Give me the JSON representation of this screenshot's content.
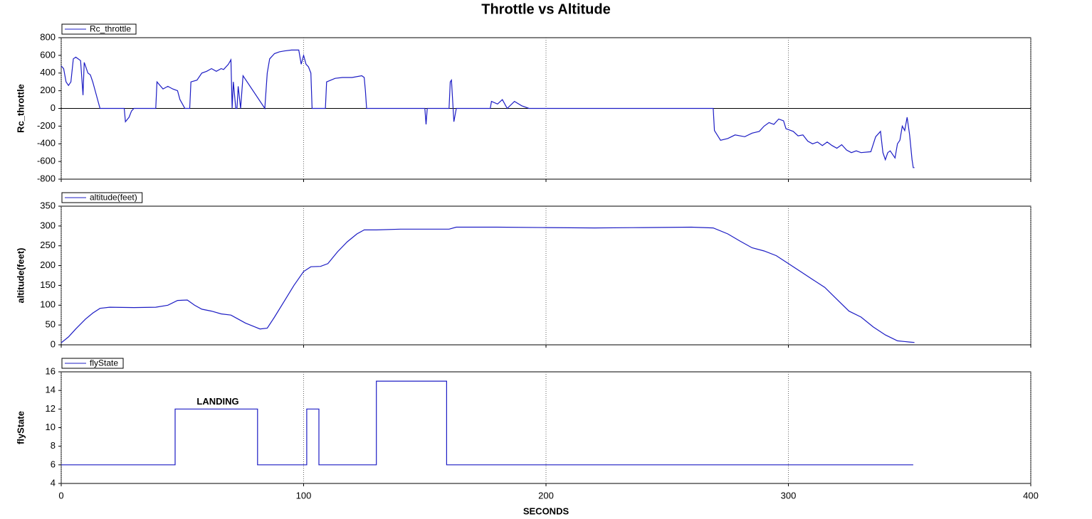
{
  "chart_data": [
    {
      "type": "line",
      "title": "Throttle vs Altitude",
      "ylabel": "Rc_throttle",
      "x": [
        0,
        1,
        2,
        3,
        4,
        5,
        6,
        7,
        8,
        9,
        9.5,
        10,
        11,
        12,
        13,
        14,
        15,
        16,
        26,
        26.5,
        28,
        29,
        30,
        39,
        39.5,
        42,
        44,
        46,
        48,
        49,
        50,
        51,
        53,
        53.5,
        56,
        58,
        60,
        62,
        64,
        66,
        67,
        69,
        70,
        70.5,
        71,
        72,
        72.5,
        73,
        74,
        75,
        84,
        85,
        86,
        88,
        90,
        92,
        95,
        98,
        99,
        100,
        101,
        102,
        103,
        103.5,
        109,
        109.5,
        113,
        116,
        120,
        124,
        125,
        125.5,
        126,
        150,
        150.5,
        151,
        160,
        160.5,
        161,
        162,
        163,
        177,
        177.5,
        180,
        182,
        184,
        187,
        190,
        193,
        269,
        269.5,
        272,
        275,
        278,
        282,
        285,
        288,
        290,
        292,
        294,
        296,
        298,
        299,
        302,
        304,
        306,
        308,
        310,
        312,
        314,
        316,
        318,
        320,
        322,
        324,
        326,
        328,
        330,
        334,
        336,
        338,
        339,
        340,
        341,
        342,
        344,
        345,
        346,
        347,
        348,
        349,
        350,
        351,
        351.5,
        352
      ],
      "series": [
        {
          "name": "Rc_throttle",
          "color": "#1c1cc4",
          "values": [
            480,
            450,
            300,
            260,
            300,
            560,
            580,
            560,
            540,
            150,
            520,
            480,
            400,
            380,
            300,
            200,
            100,
            0,
            0,
            -150,
            -100,
            -30,
            0,
            0,
            300,
            220,
            250,
            220,
            200,
            100,
            50,
            0,
            0,
            300,
            320,
            400,
            420,
            450,
            420,
            450,
            440,
            500,
            550,
            0,
            300,
            0,
            0,
            250,
            0,
            370,
            0,
            400,
            560,
            620,
            640,
            650,
            660,
            660,
            500,
            600,
            500,
            470,
            400,
            0,
            0,
            300,
            340,
            350,
            350,
            370,
            350,
            200,
            0,
            0,
            -180,
            0,
            0,
            300,
            320,
            -150,
            0,
            0,
            80,
            50,
            100,
            0,
            80,
            30,
            0,
            0,
            -250,
            -360,
            -340,
            -300,
            -320,
            -280,
            -260,
            -200,
            -160,
            -180,
            -120,
            -140,
            -230,
            -260,
            -310,
            -300,
            -370,
            -400,
            -380,
            -420,
            -380,
            -420,
            -450,
            -410,
            -470,
            -500,
            -480,
            -500,
            -490,
            -320,
            -260,
            -500,
            -580,
            -500,
            -480,
            -560,
            -400,
            -360,
            -200,
            -250,
            -100,
            -300,
            -580,
            -670,
            -670
          ]
        }
      ],
      "xlim": [
        0,
        400
      ],
      "xticks": [
        0,
        100,
        200,
        300,
        400
      ],
      "ylim": [
        -800,
        800
      ],
      "yticks": [
        -800,
        -600,
        -400,
        -200,
        0,
        200,
        400,
        600,
        800
      ],
      "grid": "x",
      "zero_line": true,
      "legend": "upper left"
    },
    {
      "type": "line",
      "ylabel": "altitude(feet)",
      "x": [
        0,
        3,
        6,
        10,
        13,
        16,
        20,
        30,
        39,
        44,
        48,
        52,
        55,
        58,
        62,
        66,
        70,
        73,
        76,
        80,
        82,
        85,
        88,
        92,
        96,
        100,
        103,
        107,
        110,
        114,
        118,
        122,
        125,
        130,
        140,
        160,
        163,
        180,
        200,
        220,
        240,
        260,
        269,
        275,
        280,
        285,
        290,
        295,
        300,
        305,
        310,
        315,
        320,
        325,
        330,
        335,
        340,
        345,
        350,
        352
      ],
      "series": [
        {
          "name": "altitude(feet)",
          "color": "#1c1cc4",
          "values": [
            5,
            20,
            40,
            65,
            80,
            92,
            95,
            94,
            95,
            100,
            112,
            113,
            100,
            90,
            85,
            78,
            75,
            65,
            55,
            45,
            40,
            42,
            70,
            110,
            150,
            185,
            197,
            198,
            205,
            235,
            260,
            280,
            290,
            290,
            292,
            292,
            297,
            297,
            296,
            295,
            296,
            297,
            295,
            280,
            262,
            245,
            237,
            225,
            205,
            185,
            165,
            145,
            115,
            85,
            70,
            45,
            25,
            10,
            7,
            6
          ]
        }
      ],
      "xlim": [
        0,
        400
      ],
      "xticks": [
        0,
        100,
        200,
        300,
        400
      ],
      "ylim": [
        0,
        350
      ],
      "yticks": [
        0,
        50,
        100,
        150,
        200,
        250,
        300,
        350
      ],
      "grid": "x",
      "legend": "upper left"
    },
    {
      "type": "line",
      "ylabel": "flyState",
      "xlabel": "SECONDS",
      "annotation": "LANDING",
      "x": [
        0,
        47,
        47,
        81,
        81,
        101.3,
        101.3,
        106.3,
        106.3,
        130,
        130,
        159,
        159,
        351.5
      ],
      "series": [
        {
          "name": "flyState",
          "color": "#1c1cc4",
          "values": [
            6,
            6,
            12,
            12,
            6,
            6,
            12,
            12,
            6,
            6,
            15,
            15,
            6,
            6
          ]
        }
      ],
      "xlim": [
        0,
        400
      ],
      "xticks": [
        0,
        100,
        200,
        300,
        400
      ],
      "ylim": [
        4,
        16
      ],
      "yticks": [
        4,
        6,
        8,
        10,
        12,
        14,
        16
      ],
      "grid": "x",
      "legend": "upper left"
    }
  ]
}
